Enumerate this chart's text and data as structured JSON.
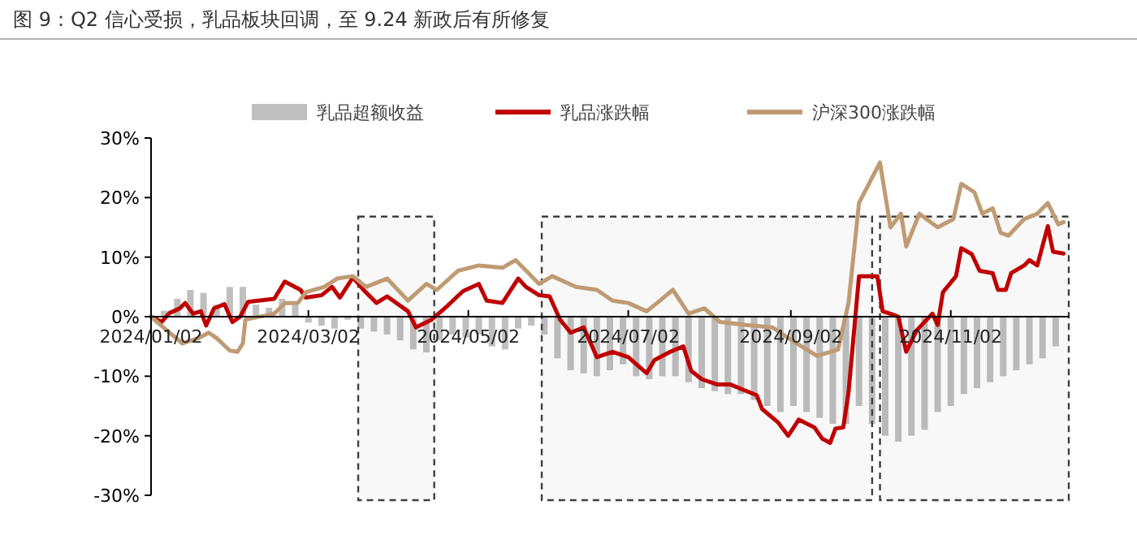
{
  "chart_data": {
    "type": "line",
    "title": "图 9：Q2 信心受损，乳品板块回调，至 9.24 新政后有所修复",
    "xlim": [
      "2024-01-02",
      "2024-12-17"
    ],
    "xticks": [
      {
        "value": "2024-01-02",
        "label": "2024/01/02"
      },
      {
        "value": "2024-03-02",
        "label": "2024/03/02"
      },
      {
        "value": "2024-05-02",
        "label": "2024/05/02"
      },
      {
        "value": "2024-07-02",
        "label": "2024/07/02"
      },
      {
        "value": "2024-09-02",
        "label": "2024/09/02"
      },
      {
        "value": "2024-11-02",
        "label": "2024/11/02"
      }
    ],
    "ylim": [
      -30,
      30
    ],
    "yticks": [
      {
        "value": -30,
        "label": "-30%"
      },
      {
        "value": -20,
        "label": "-20%"
      },
      {
        "value": -10,
        "label": "-10%"
      },
      {
        "value": 0,
        "label": "0%"
      },
      {
        "value": 10,
        "label": "10%"
      },
      {
        "value": 20,
        "label": "20%"
      },
      {
        "value": 30,
        "label": "30%"
      }
    ],
    "legend": "top",
    "grid": false,
    "marker": "none",
    "line_style": "solid",
    "bands": [
      {
        "axis": "x",
        "from": "2024-03-21",
        "to": "2024-04-19",
        "color": "#404040"
      },
      {
        "axis": "x",
        "from": "2024-05-30",
        "to": "2024-10-03",
        "color": "#404040"
      },
      {
        "axis": "x",
        "from": "2024-10-06",
        "to": "2024-12-17",
        "color": "#404040"
      }
    ],
    "series": [
      {
        "name": "乳品超额收益",
        "type": "bar",
        "color": "#bfbfbf",
        "x": [
          "2024-01-07",
          "2024-01-12",
          "2024-01-17",
          "2024-01-22",
          "2024-01-27",
          "2024-02-01",
          "2024-02-06",
          "2024-02-11",
          "2024-02-16",
          "2024-02-21",
          "2024-02-26",
          "2024-03-02",
          "2024-03-07",
          "2024-03-12",
          "2024-03-17",
          "2024-03-22",
          "2024-03-27",
          "2024-04-01",
          "2024-04-06",
          "2024-04-11",
          "2024-04-16",
          "2024-04-21",
          "2024-04-26",
          "2024-05-01",
          "2024-05-06",
          "2024-05-11",
          "2024-05-16",
          "2024-05-21",
          "2024-05-26",
          "2024-05-31",
          "2024-06-05",
          "2024-06-10",
          "2024-06-15",
          "2024-06-20",
          "2024-06-25",
          "2024-06-30",
          "2024-07-05",
          "2024-07-10",
          "2024-07-15",
          "2024-07-20",
          "2024-07-25",
          "2024-07-30",
          "2024-08-04",
          "2024-08-09",
          "2024-08-14",
          "2024-08-19",
          "2024-08-24",
          "2024-08-29",
          "2024-09-03",
          "2024-09-08",
          "2024-09-13",
          "2024-09-18",
          "2024-09-23",
          "2024-09-28",
          "2024-10-03",
          "2024-10-08",
          "2024-10-13",
          "2024-10-18",
          "2024-10-23",
          "2024-10-28",
          "2024-11-02",
          "2024-11-07",
          "2024-11-12",
          "2024-11-17",
          "2024-11-22",
          "2024-11-27",
          "2024-12-02",
          "2024-12-07",
          "2024-12-12"
        ],
        "values": [
          1,
          3,
          4.5,
          4,
          2,
          5,
          5,
          2,
          1.5,
          3,
          2,
          -1,
          -1.5,
          -2,
          -0.5,
          -2,
          -2.5,
          -3,
          -4,
          -5.5,
          -6,
          -4,
          -3,
          -3.5,
          -3,
          -5,
          -5.5,
          -2,
          -1.5,
          -3,
          -7,
          -9,
          -9.5,
          -10,
          -9,
          -8,
          -10,
          -10.5,
          -10,
          -10,
          -11,
          -12,
          -12.5,
          -13,
          -13,
          -14,
          -15,
          -16,
          -15,
          -16,
          -17,
          -18,
          -18,
          -15,
          -18,
          -20,
          -21,
          -20,
          -19,
          -16,
          -15,
          -13,
          -12,
          -11,
          -10,
          -9,
          -8,
          -7,
          -5
        ]
      },
      {
        "name": "乳品涨跌幅",
        "color": "#c00000",
        "x": [
          "2024-01-02",
          "2024-01-06",
          "2024-01-09",
          "2024-01-13",
          "2024-01-15",
          "2024-01-18",
          "2024-01-21",
          "2024-01-23",
          "2024-01-26",
          "2024-01-30",
          "2024-02-02",
          "2024-02-05",
          "2024-02-08",
          "2024-02-18",
          "2024-02-22",
          "2024-02-28",
          "2024-03-01",
          "2024-03-07",
          "2024-03-11",
          "2024-03-14",
          "2024-03-19",
          "2024-03-23",
          "2024-03-28",
          "2024-04-01",
          "2024-04-09",
          "2024-04-12",
          "2024-04-18",
          "2024-04-24",
          "2024-04-30",
          "2024-05-06",
          "2024-05-09",
          "2024-05-15",
          "2024-05-21",
          "2024-05-24",
          "2024-05-29",
          "2024-06-02",
          "2024-06-06",
          "2024-06-10",
          "2024-06-15",
          "2024-06-20",
          "2024-06-26",
          "2024-07-02",
          "2024-07-09",
          "2024-07-12",
          "2024-07-18",
          "2024-07-23",
          "2024-07-26",
          "2024-07-30",
          "2024-08-05",
          "2024-08-10",
          "2024-08-15",
          "2024-08-20",
          "2024-08-22",
          "2024-08-28",
          "2024-09-01",
          "2024-09-05",
          "2024-09-11",
          "2024-09-14",
          "2024-09-17",
          "2024-09-19",
          "2024-09-22",
          "2024-09-24",
          "2024-09-28",
          "2024-10-05",
          "2024-10-07",
          "2024-10-10",
          "2024-10-13",
          "2024-10-16",
          "2024-10-20",
          "2024-10-26",
          "2024-10-28",
          "2024-10-30",
          "2024-11-04",
          "2024-11-06",
          "2024-11-10",
          "2024-11-13",
          "2024-11-18",
          "2024-11-20",
          "2024-11-23",
          "2024-11-25",
          "2024-11-30",
          "2024-12-02",
          "2024-12-05",
          "2024-12-09",
          "2024-12-11",
          "2024-12-15"
        ],
        "values": [
          0,
          -0.9,
          0.6,
          1.4,
          2.3,
          0.5,
          0.9,
          -1.5,
          1.4,
          2.1,
          -0.9,
          0,
          2.5,
          3.0,
          5.9,
          4.5,
          3.2,
          3.6,
          5.0,
          3.2,
          6.6,
          4.5,
          2.3,
          3.4,
          0.9,
          -1.8,
          -0.5,
          1.8,
          4.3,
          5.5,
          2.7,
          2.3,
          6.4,
          5.0,
          3.6,
          3.4,
          -0.5,
          -2.7,
          -1.8,
          -6.8,
          -5.9,
          -6.8,
          -9.5,
          -7.3,
          -5.9,
          -5.0,
          -9.1,
          -10.5,
          -11.4,
          -11.4,
          -12.3,
          -13.2,
          -15.5,
          -17.7,
          -20.0,
          -17.3,
          -18.6,
          -20.5,
          -21.2,
          -18.8,
          -18.6,
          -12.7,
          6.8,
          6.8,
          0.9,
          0.5,
          0,
          -5.9,
          -2.3,
          0.5,
          -1.4,
          4.1,
          6.8,
          11.5,
          10.5,
          7.7,
          7.3,
          4.5,
          4.5,
          7.3,
          8.6,
          9.5,
          8.6,
          15.2,
          10.9,
          10.6
        ]
      },
      {
        "name": "沪深300涨跌幅",
        "color": "#bf9b73",
        "x": [
          "2024-01-02",
          "2024-01-08",
          "2024-01-14",
          "2024-01-20",
          "2024-01-24",
          "2024-01-27",
          "2024-02-01",
          "2024-02-04",
          "2024-02-06",
          "2024-02-07",
          "2024-02-18",
          "2024-02-22",
          "2024-02-27",
          "2024-03-01",
          "2024-03-08",
          "2024-03-13",
          "2024-03-19",
          "2024-03-24",
          "2024-04-01",
          "2024-04-09",
          "2024-04-16",
          "2024-04-20",
          "2024-04-28",
          "2024-05-06",
          "2024-05-15",
          "2024-05-20",
          "2024-05-25",
          "2024-05-29",
          "2024-06-03",
          "2024-06-12",
          "2024-06-20",
          "2024-06-26",
          "2024-07-02",
          "2024-07-09",
          "2024-07-13",
          "2024-07-19",
          "2024-07-25",
          "2024-07-31",
          "2024-08-06",
          "2024-08-16",
          "2024-08-26",
          "2024-09-01",
          "2024-09-12",
          "2024-09-20",
          "2024-09-24",
          "2024-09-28",
          "2024-10-06",
          "2024-10-10",
          "2024-10-14",
          "2024-10-16",
          "2024-10-21",
          "2024-10-28",
          "2024-11-03",
          "2024-11-06",
          "2024-11-11",
          "2024-11-14",
          "2024-11-18",
          "2024-11-21",
          "2024-11-24",
          "2024-11-30",
          "2024-12-05",
          "2024-12-09",
          "2024-12-13",
          "2024-12-15"
        ],
        "values": [
          0,
          -2.3,
          -4.5,
          -3.6,
          -2.7,
          -3.6,
          -5.7,
          -5.9,
          -4.5,
          -0.5,
          0.5,
          2.3,
          2.3,
          4.1,
          5.0,
          6.4,
          6.8,
          5.0,
          6.4,
          2.7,
          5.5,
          4.5,
          7.7,
          8.6,
          8.2,
          9.5,
          7.3,
          5.5,
          6.8,
          5.0,
          4.5,
          2.7,
          2.3,
          0.9,
          2.3,
          4.5,
          0.5,
          1.4,
          -0.9,
          -1.4,
          -1.8,
          -3.6,
          -6.6,
          -5.5,
          2.3,
          19.1,
          25.9,
          15.0,
          17.3,
          11.8,
          17.3,
          15.0,
          16.4,
          22.3,
          20.9,
          17.3,
          18.2,
          14.1,
          13.6,
          16.4,
          17.3,
          19.1,
          15.5,
          15.9
        ]
      }
    ]
  }
}
